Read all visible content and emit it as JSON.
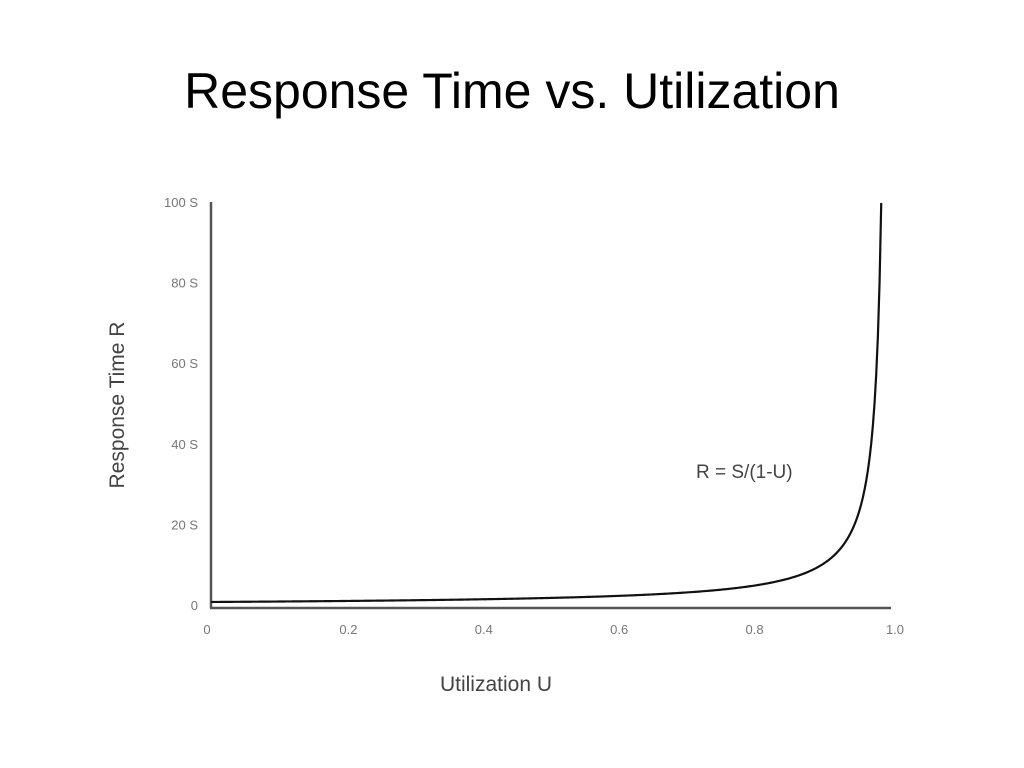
{
  "slide": {
    "title": "Response Time vs. Utilization"
  },
  "chart_data": {
    "type": "line",
    "title": "Response Time vs. Utilization",
    "xlabel": "Utilization U",
    "ylabel": "Response Time R",
    "xlim": [
      0,
      1.0
    ],
    "ylim": [
      0,
      100
    ],
    "x_ticks": [
      "0",
      "0.2",
      "0.4",
      "0.6",
      "0.8",
      "1.0"
    ],
    "y_ticks": [
      "0",
      "20 S",
      "40 S",
      "60 S",
      "80 S",
      "100 S"
    ],
    "grid": false,
    "legend": null,
    "annotations": [
      {
        "text": "R = S/(1-U)",
        "x": 0.72,
        "y": 34
      }
    ],
    "series": [
      {
        "name": "R = S/(1-U)",
        "x": [
          0,
          0.1,
          0.2,
          0.3,
          0.4,
          0.5,
          0.6,
          0.7,
          0.8,
          0.85,
          0.9,
          0.93,
          0.95,
          0.97,
          0.98,
          0.99
        ],
        "values": [
          1,
          1.11,
          1.25,
          1.43,
          1.67,
          2,
          2.5,
          3.33,
          5,
          6.67,
          10,
          14.3,
          20,
          33.3,
          50,
          100
        ]
      }
    ]
  }
}
